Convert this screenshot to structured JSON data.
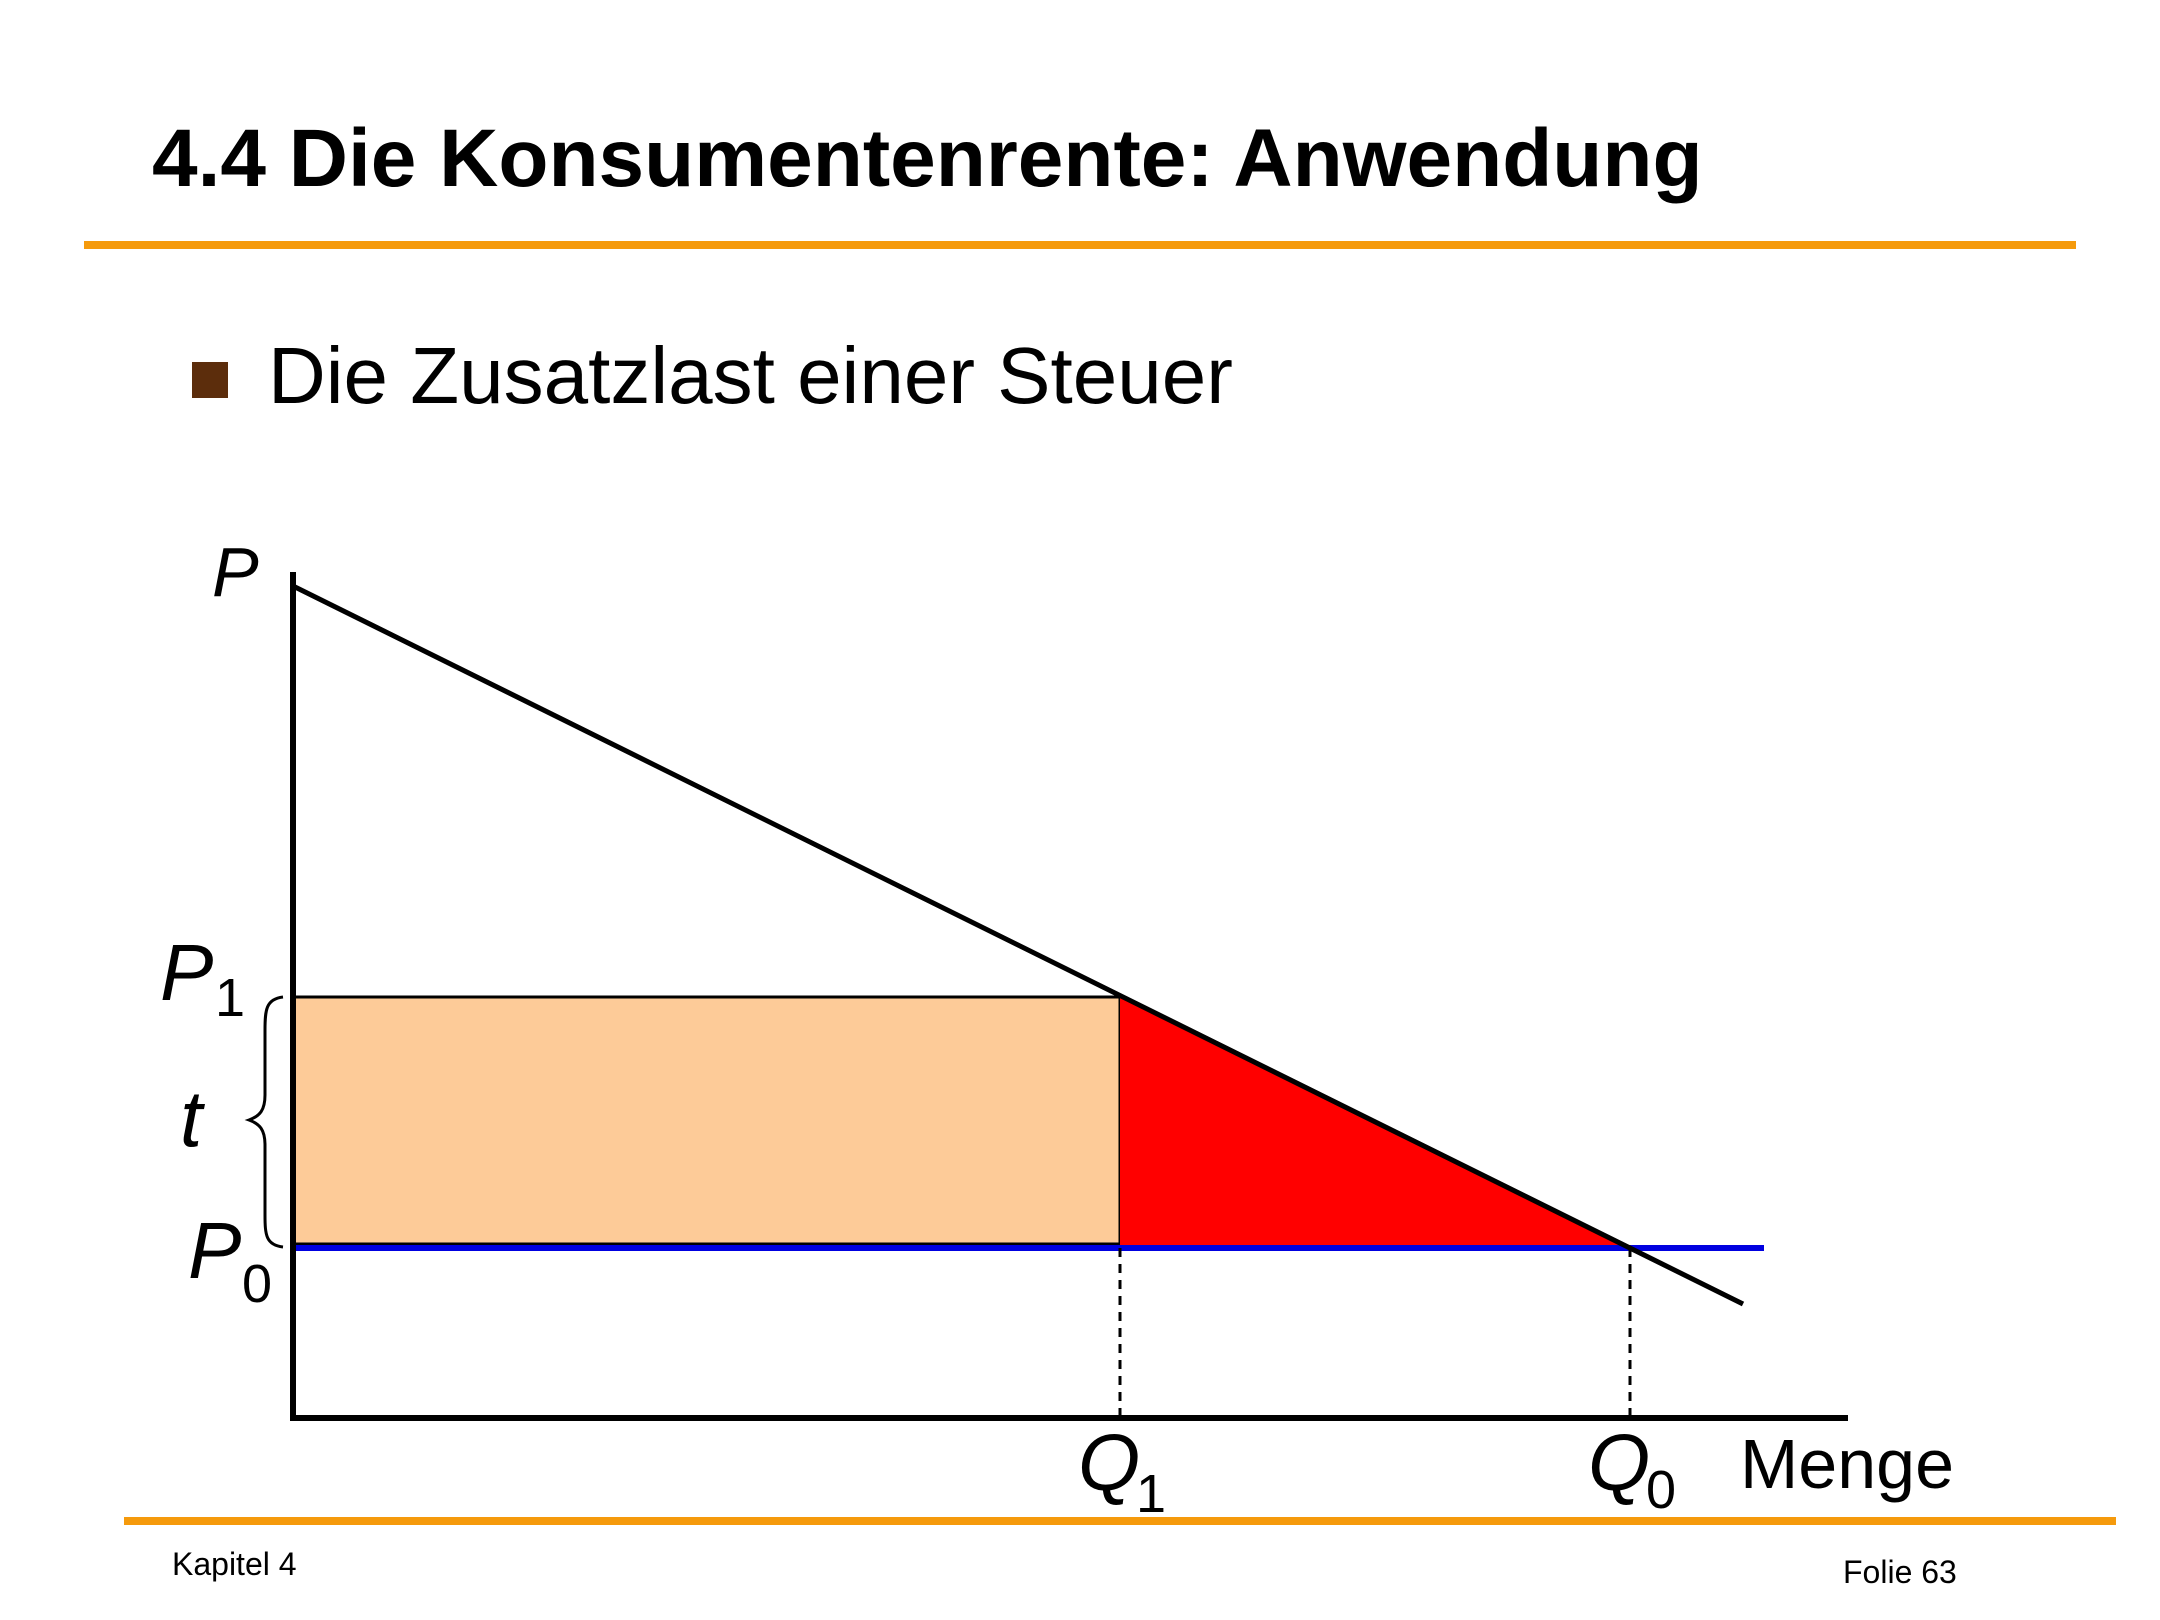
{
  "slide": {
    "title": "4.4 Die Konsumentenrente: Anwendung",
    "bullet": "Die Zusatzlast einer Steuer",
    "footer_left": "Kapitel 4",
    "footer_right": "Folie 63"
  },
  "colors": {
    "accent_rule": "#f59a0c",
    "bullet_square": "#5c2d0c",
    "tax_revenue_area": "#fdcb98",
    "deadweight_loss_area": "#ff0000",
    "price_line_p0": "#0000e0"
  },
  "diagram": {
    "y_axis_label": "P",
    "x_axis_label": "Menge",
    "labels": {
      "p1": {
        "main": "P",
        "sub": "1"
      },
      "p0": {
        "main": "P",
        "sub": "0"
      },
      "t": "t",
      "q1": {
        "main": "Q",
        "sub": "1"
      },
      "q0": {
        "main": "Q",
        "sub": "0"
      }
    }
  }
}
